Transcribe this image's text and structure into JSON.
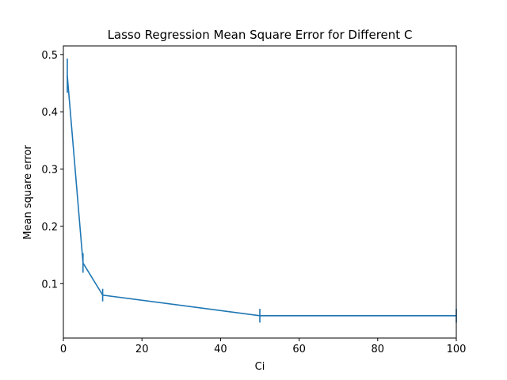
{
  "chart_data": {
    "type": "line",
    "title": "Lasso Regression Mean Square Error for Different C",
    "xlabel": "Ci",
    "ylabel": "Mean square error",
    "xlim": [
      0,
      100
    ],
    "ylim": [
      0.005,
      0.515
    ],
    "xticks": [
      0,
      20,
      40,
      60,
      80,
      100
    ],
    "yticks": [
      0.1,
      0.2,
      0.3,
      0.4,
      0.5
    ],
    "grid": false,
    "series": [
      {
        "color": "#1f77b4",
        "x": [
          1,
          5,
          10,
          50,
          100
        ],
        "y": [
          0.463,
          0.136,
          0.08,
          0.044,
          0.044
        ],
        "err": [
          0.03,
          0.017,
          0.011,
          0.012,
          0.012
        ]
      }
    ]
  }
}
